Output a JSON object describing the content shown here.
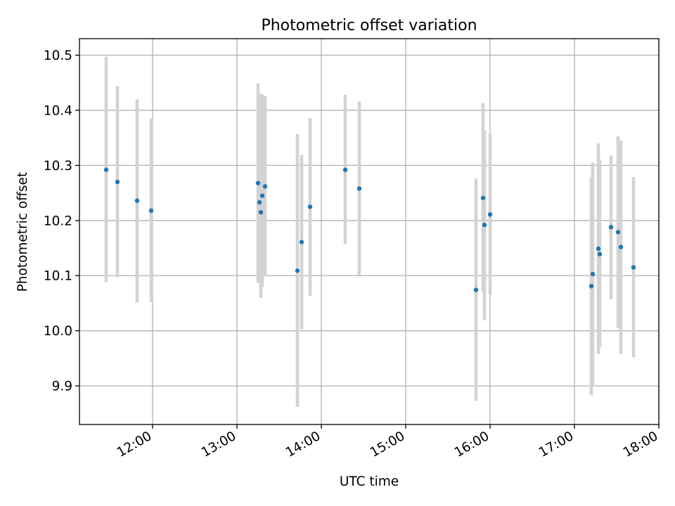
{
  "chart_data": {
    "type": "scatter",
    "title": "Photometric offset variation",
    "xlabel": "UTC time",
    "ylabel": "Photometric offset",
    "xlim": [
      "11:08",
      "18:00"
    ],
    "ylim": [
      9.83,
      10.53
    ],
    "x_ticks": [
      "12:00",
      "13:00",
      "14:00",
      "15:00",
      "16:00",
      "17:00",
      "18:00"
    ],
    "y_ticks": [
      "9.9",
      "10.0",
      "10.1",
      "10.2",
      "10.3",
      "10.4",
      "10.5"
    ],
    "grid": true,
    "colors": {
      "marker": "#1f77b4",
      "errorbar": "#d3d3d3",
      "grid": "#b0b0b0",
      "axes": "#000000"
    },
    "series": [
      {
        "points": [
          {
            "x": "11:27",
            "y": 10.292,
            "err_low": 10.088,
            "err_high": 10.497
          },
          {
            "x": "11:35",
            "y": 10.27,
            "err_low": 10.097,
            "err_high": 10.444
          },
          {
            "x": "11:49",
            "y": 10.236,
            "err_low": 10.051,
            "err_high": 10.42
          },
          {
            "x": "11:59",
            "y": 10.218,
            "err_low": 10.052,
            "err_high": 10.385
          },
          {
            "x": "13:15",
            "y": 10.268,
            "err_low": 10.087,
            "err_high": 10.449
          },
          {
            "x": "13:16",
            "y": 10.233,
            "err_low": 10.09,
            "err_high": 10.39
          },
          {
            "x": "13:17",
            "y": 10.215,
            "err_low": 10.06,
            "err_high": 10.43
          },
          {
            "x": "13:18",
            "y": 10.245,
            "err_low": 10.08,
            "err_high": 10.428
          },
          {
            "x": "13:20",
            "y": 10.262,
            "err_low": 10.1,
            "err_high": 10.426
          },
          {
            "x": "13:43",
            "y": 10.109,
            "err_low": 9.862,
            "err_high": 10.357
          },
          {
            "x": "13:46",
            "y": 10.161,
            "err_low": 10.003,
            "err_high": 10.319
          },
          {
            "x": "13:52",
            "y": 10.225,
            "err_low": 10.063,
            "err_high": 10.386
          },
          {
            "x": "14:17",
            "y": 10.292,
            "err_low": 10.157,
            "err_high": 10.428
          },
          {
            "x": "14:27",
            "y": 10.258,
            "err_low": 10.101,
            "err_high": 10.416
          },
          {
            "x": "15:50",
            "y": 10.074,
            "err_low": 9.873,
            "err_high": 10.276
          },
          {
            "x": "15:55",
            "y": 10.241,
            "err_low": 10.07,
            "err_high": 10.413
          },
          {
            "x": "15:56",
            "y": 10.192,
            "err_low": 10.019,
            "err_high": 10.364
          },
          {
            "x": "16:00",
            "y": 10.211,
            "err_low": 10.065,
            "err_high": 10.358
          },
          {
            "x": "17:12",
            "y": 10.081,
            "err_low": 9.883,
            "err_high": 10.279
          },
          {
            "x": "17:13",
            "y": 10.103,
            "err_low": 9.902,
            "err_high": 10.305
          },
          {
            "x": "17:17",
            "y": 10.149,
            "err_low": 9.958,
            "err_high": 10.34
          },
          {
            "x": "17:18",
            "y": 10.139,
            "err_low": 9.97,
            "err_high": 10.31
          },
          {
            "x": "17:26",
            "y": 10.188,
            "err_low": 10.057,
            "err_high": 10.318
          },
          {
            "x": "17:31",
            "y": 10.179,
            "err_low": 10.005,
            "err_high": 10.353
          },
          {
            "x": "17:33",
            "y": 10.152,
            "err_low": 9.958,
            "err_high": 10.345
          },
          {
            "x": "17:42",
            "y": 10.115,
            "err_low": 9.952,
            "err_high": 10.279
          }
        ]
      }
    ]
  }
}
